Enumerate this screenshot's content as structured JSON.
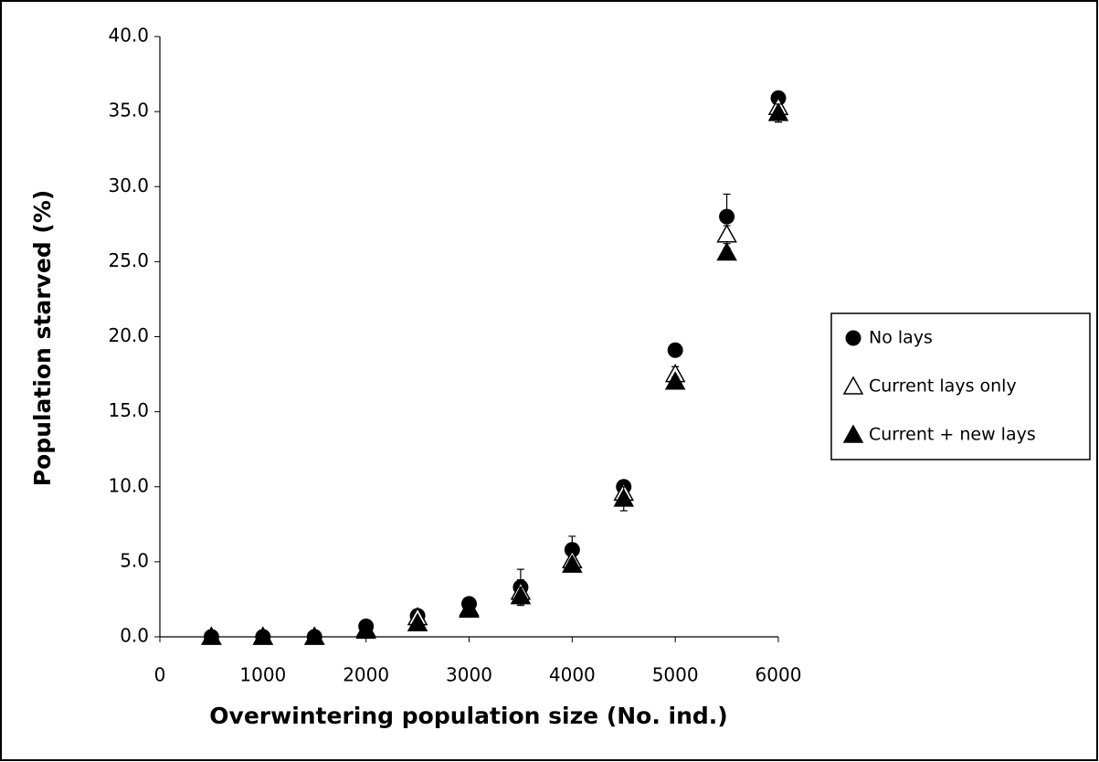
{
  "chart_data": {
    "type": "scatter",
    "x_label": "Overwintering population size (No. ind.)",
    "y_label": "Population starved (%)",
    "xlim": [
      0,
      6000
    ],
    "xticks": [
      0,
      1000,
      2000,
      3000,
      4000,
      5000,
      6000
    ],
    "ylim": [
      0,
      40
    ],
    "yticks": [
      {
        "value": 0,
        "label": "0.0"
      },
      {
        "value": 5,
        "label": "5.0"
      },
      {
        "value": 10,
        "label": "10.0"
      },
      {
        "value": 15,
        "label": "15.0"
      },
      {
        "value": 20,
        "label": "20.0"
      },
      {
        "value": 25,
        "label": "25.0"
      },
      {
        "value": 30,
        "label": "30.0"
      },
      {
        "value": 35,
        "label": "35.0"
      },
      {
        "value": 40,
        "label": "40.0"
      }
    ],
    "grid": false,
    "legend": "right",
    "x": [
      500,
      1000,
      1500,
      2000,
      2500,
      3000,
      3500,
      4000,
      4500,
      5000,
      5500,
      6000
    ],
    "series": [
      {
        "name": "No lays",
        "color": "#000000",
        "marker": "circle",
        "values": [
          0,
          0,
          0,
          0.7,
          1.4,
          2.2,
          3.3,
          5.8,
          10.0,
          19.1,
          28.0,
          35.9
        ],
        "errors": [
          0,
          0,
          0,
          0.1,
          0.3,
          0.2,
          1.2,
          0.9,
          0.3,
          0.4,
          1.5,
          0.3
        ]
      },
      {
        "name": "Current lays only",
        "color": "#000000",
        "marker": "triangle-open",
        "values": [
          0,
          0,
          0,
          0.5,
          1.3,
          1.9,
          3.0,
          5.1,
          9.6,
          17.5,
          26.8,
          35.3
        ],
        "errors": [
          0,
          0,
          0,
          0.1,
          0.3,
          0.2,
          0.8,
          0.4,
          0.6,
          0.5,
          0.6,
          0.3
        ]
      },
      {
        "name": "Current + new lays",
        "color": "#000000",
        "marker": "triangle",
        "values": [
          0,
          0,
          0,
          0.4,
          0.9,
          1.8,
          2.7,
          4.8,
          9.2,
          17.0,
          25.6,
          34.9
        ],
        "errors": [
          0,
          0,
          0,
          0.1,
          0.2,
          0.2,
          0.6,
          0.3,
          0.8,
          0.3,
          0.3,
          0.6
        ]
      }
    ]
  }
}
